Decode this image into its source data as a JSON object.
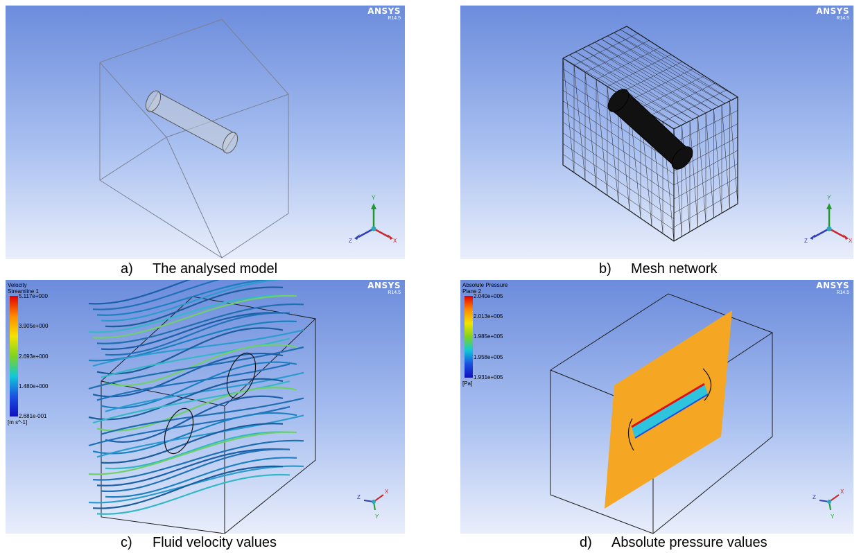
{
  "brand": {
    "name": "ANSYS",
    "version": "R14.5"
  },
  "panels": [
    {
      "letter": "a)",
      "caption": "The analysed model"
    },
    {
      "letter": "b)",
      "caption": "Mesh network"
    },
    {
      "letter": "c)",
      "caption": "Fluid velocity values"
    },
    {
      "letter": "d)",
      "caption": "Absolute pressure values"
    }
  ],
  "velocity_legend": {
    "title": "Velocity",
    "subtitle": "Streamline 1",
    "ticks": [
      "5.117e+000",
      "3.905e+000",
      "2.693e+000",
      "1.480e+000",
      "2.681e-001"
    ],
    "unit": "[m s^-1]"
  },
  "pressure_legend": {
    "title": "Absolute Pressure",
    "subtitle": "Plane 2",
    "ticks": [
      "2.040e+005",
      "2.013e+005",
      "1.985e+005",
      "1.958e+005",
      "1.931e+005"
    ],
    "unit": "[Pa]"
  },
  "axes": {
    "x": "X",
    "y": "Y",
    "z": "Z"
  },
  "colors": {
    "background_top": "#6c8cdc",
    "background_bottom": "#e9eefb",
    "pressure_plane": "#f5a623",
    "streamline": "#1a5fa8"
  }
}
